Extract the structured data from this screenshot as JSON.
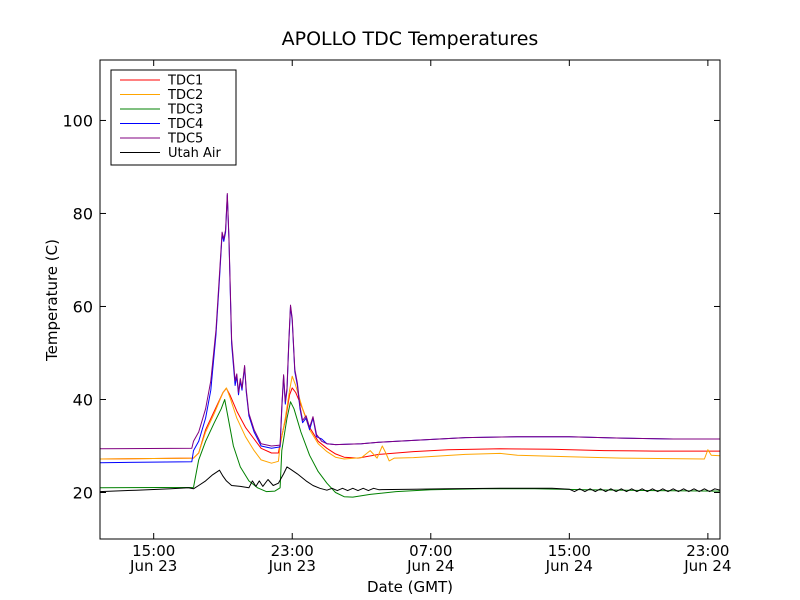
{
  "chart_data": {
    "type": "line",
    "title": "APOLLO TDC Temperatures",
    "xlabel": "Date (GMT)",
    "ylabel": "Temperature (C)",
    "x_unit": "hours",
    "xlim": [
      11.9,
      47.7
    ],
    "ylim": [
      10,
      113
    ],
    "grid": false,
    "legend_position": "top-left",
    "x_ticks": [
      {
        "value": 15,
        "time": "15:00",
        "date": "Jun 23"
      },
      {
        "value": 23,
        "time": "23:00",
        "date": "Jun 23"
      },
      {
        "value": 31,
        "time": "07:00",
        "date": "Jun 24"
      },
      {
        "value": 39,
        "time": "15:00",
        "date": "Jun 24"
      },
      {
        "value": 47,
        "time": "23:00",
        "date": "Jun 24"
      }
    ],
    "y_ticks": [
      20,
      40,
      60,
      80,
      100
    ],
    "series": [
      {
        "name": "TDC1",
        "color": "#ff0000",
        "points": [
          [
            11.9,
            27.2
          ],
          [
            17.3,
            27.4
          ],
          [
            17.6,
            28.5
          ],
          [
            18.0,
            33.5
          ],
          [
            18.5,
            37.5
          ],
          [
            19.0,
            41.5
          ],
          [
            19.2,
            42.4
          ],
          [
            19.4,
            41.0
          ],
          [
            19.8,
            37.5
          ],
          [
            20.3,
            34.0
          ],
          [
            20.8,
            31.5
          ],
          [
            21.2,
            29.5
          ],
          [
            21.8,
            28.5
          ],
          [
            22.2,
            28.5
          ],
          [
            22.3,
            30.5
          ],
          [
            22.6,
            35.5
          ],
          [
            22.85,
            41.0
          ],
          [
            23.0,
            42.5
          ],
          [
            23.2,
            41.5
          ],
          [
            23.6,
            38.0
          ],
          [
            24.0,
            34.0
          ],
          [
            24.5,
            31.0
          ],
          [
            25.0,
            29.5
          ],
          [
            25.5,
            28.3
          ],
          [
            26.0,
            27.6
          ],
          [
            26.8,
            27.4
          ],
          [
            28.0,
            28.2
          ],
          [
            30.0,
            28.8
          ],
          [
            32.0,
            29.2
          ],
          [
            35.0,
            29.4
          ],
          [
            38.0,
            29.3
          ],
          [
            41.0,
            29.0
          ],
          [
            44.0,
            28.9
          ],
          [
            47.7,
            28.9
          ]
        ]
      },
      {
        "name": "TDC2",
        "color": "#ffa500",
        "points": [
          [
            11.9,
            27.2
          ],
          [
            17.3,
            27.4
          ],
          [
            17.6,
            28.5
          ],
          [
            18.0,
            33.0
          ],
          [
            18.5,
            37.0
          ],
          [
            19.0,
            41.5
          ],
          [
            19.2,
            42.5
          ],
          [
            19.4,
            40.5
          ],
          [
            19.8,
            36.0
          ],
          [
            20.3,
            32.0
          ],
          [
            20.8,
            29.0
          ],
          [
            21.2,
            27.0
          ],
          [
            21.8,
            26.3
          ],
          [
            22.2,
            26.7
          ],
          [
            22.3,
            30.0
          ],
          [
            22.6,
            36.0
          ],
          [
            22.85,
            42.0
          ],
          [
            23.0,
            45.0
          ],
          [
            23.2,
            43.0
          ],
          [
            23.6,
            38.0
          ],
          [
            24.0,
            33.5
          ],
          [
            24.5,
            30.5
          ],
          [
            25.0,
            28.8
          ],
          [
            25.5,
            27.6
          ],
          [
            26.0,
            27.2
          ],
          [
            27.0,
            27.5
          ],
          [
            27.5,
            29.0
          ],
          [
            27.9,
            27.4
          ],
          [
            28.2,
            30.0
          ],
          [
            28.4,
            28.5
          ],
          [
            28.6,
            26.8
          ],
          [
            28.9,
            27.4
          ],
          [
            30.0,
            27.5
          ],
          [
            33.0,
            28.2
          ],
          [
            35.0,
            28.4
          ],
          [
            36.0,
            28.0
          ],
          [
            39.0,
            27.7
          ],
          [
            42.0,
            27.4
          ],
          [
            46.8,
            27.2
          ],
          [
            47.0,
            29.2
          ],
          [
            47.2,
            28.0
          ],
          [
            47.7,
            27.9
          ]
        ]
      },
      {
        "name": "TDC3",
        "color": "#008000",
        "points": [
          [
            11.9,
            21.0
          ],
          [
            17.3,
            21.1
          ],
          [
            17.6,
            27.0
          ],
          [
            18.0,
            31.0
          ],
          [
            18.5,
            35.0
          ],
          [
            18.9,
            38.0
          ],
          [
            19.1,
            40.0
          ],
          [
            19.3,
            36.0
          ],
          [
            19.6,
            30.0
          ],
          [
            20.0,
            25.5
          ],
          [
            20.5,
            22.5
          ],
          [
            21.0,
            21.0
          ],
          [
            21.5,
            20.2
          ],
          [
            22.0,
            20.3
          ],
          [
            22.3,
            21.0
          ],
          [
            22.4,
            29.0
          ],
          [
            22.7,
            36.0
          ],
          [
            22.9,
            39.5
          ],
          [
            23.1,
            38.0
          ],
          [
            23.5,
            33.0
          ],
          [
            24.0,
            28.0
          ],
          [
            24.5,
            24.5
          ],
          [
            25.0,
            22.0
          ],
          [
            25.5,
            20.0
          ],
          [
            26.0,
            19.1
          ],
          [
            26.5,
            19.0
          ],
          [
            27.5,
            19.6
          ],
          [
            29.0,
            20.2
          ],
          [
            31.0,
            20.6
          ],
          [
            34.0,
            20.8
          ],
          [
            37.0,
            20.8
          ],
          [
            40.0,
            20.6
          ],
          [
            44.0,
            20.4
          ],
          [
            47.7,
            20.3
          ]
        ]
      },
      {
        "name": "TDC4",
        "color": "#0000ff",
        "points": [
          [
            11.9,
            26.4
          ],
          [
            17.2,
            26.6
          ],
          [
            17.3,
            29.0
          ],
          [
            17.6,
            31.0
          ],
          [
            18.0,
            36.0
          ],
          [
            18.3,
            42.0
          ],
          [
            18.6,
            54.0
          ],
          [
            18.8,
            66.0
          ],
          [
            18.95,
            75.5
          ],
          [
            19.05,
            74.0
          ],
          [
            19.15,
            76.0
          ],
          [
            19.25,
            84.0
          ],
          [
            19.35,
            74.0
          ],
          [
            19.5,
            52.0
          ],
          [
            19.7,
            43.0
          ],
          [
            19.8,
            45.0
          ],
          [
            19.9,
            41.0
          ],
          [
            20.0,
            44.0
          ],
          [
            20.1,
            42.0
          ],
          [
            20.25,
            47.0
          ],
          [
            20.35,
            41.5
          ],
          [
            20.5,
            36.5
          ],
          [
            20.8,
            33.0
          ],
          [
            21.2,
            30.0
          ],
          [
            21.8,
            29.5
          ],
          [
            22.3,
            29.8
          ],
          [
            22.4,
            38.0
          ],
          [
            22.5,
            45.0
          ],
          [
            22.6,
            39.0
          ],
          [
            22.7,
            42.0
          ],
          [
            22.8,
            52.0
          ],
          [
            22.9,
            60.0
          ],
          [
            23.0,
            57.0
          ],
          [
            23.15,
            46.0
          ],
          [
            23.3,
            43.0
          ],
          [
            23.45,
            38.0
          ],
          [
            23.6,
            35.0
          ],
          [
            23.8,
            36.0
          ],
          [
            24.0,
            33.5
          ],
          [
            24.2,
            36.0
          ],
          [
            24.4,
            32.0
          ],
          [
            24.7,
            31.5
          ],
          [
            25.0,
            30.5
          ],
          [
            25.5,
            30.3
          ],
          [
            27.0,
            30.5
          ],
          [
            28.0,
            30.8
          ],
          [
            30.0,
            31.2
          ],
          [
            33.0,
            31.8
          ],
          [
            36.0,
            32.0
          ],
          [
            39.0,
            32.0
          ],
          [
            42.0,
            31.7
          ],
          [
            45.0,
            31.5
          ],
          [
            47.7,
            31.5
          ]
        ]
      },
      {
        "name": "TDC5",
        "color": "#800080",
        "points": [
          [
            11.9,
            29.4
          ],
          [
            17.2,
            29.5
          ],
          [
            17.3,
            31.0
          ],
          [
            17.6,
            33.0
          ],
          [
            18.0,
            38.0
          ],
          [
            18.3,
            44.0
          ],
          [
            18.6,
            55.0
          ],
          [
            18.8,
            67.0
          ],
          [
            18.95,
            76.0
          ],
          [
            19.05,
            74.5
          ],
          [
            19.15,
            76.5
          ],
          [
            19.25,
            84.3
          ],
          [
            19.35,
            74.5
          ],
          [
            19.5,
            53.0
          ],
          [
            19.7,
            44.0
          ],
          [
            19.8,
            45.5
          ],
          [
            19.9,
            41.5
          ],
          [
            20.0,
            44.5
          ],
          [
            20.1,
            42.5
          ],
          [
            20.25,
            47.3
          ],
          [
            20.35,
            42.0
          ],
          [
            20.5,
            37.0
          ],
          [
            20.8,
            33.5
          ],
          [
            21.2,
            30.5
          ],
          [
            21.8,
            30.0
          ],
          [
            22.3,
            30.2
          ],
          [
            22.4,
            38.5
          ],
          [
            22.5,
            45.3
          ],
          [
            22.6,
            39.5
          ],
          [
            22.7,
            42.5
          ],
          [
            22.8,
            52.5
          ],
          [
            22.9,
            60.3
          ],
          [
            23.0,
            57.5
          ],
          [
            23.15,
            46.5
          ],
          [
            23.3,
            43.5
          ],
          [
            23.45,
            38.5
          ],
          [
            23.6,
            35.5
          ],
          [
            23.8,
            36.5
          ],
          [
            24.0,
            34.0
          ],
          [
            24.2,
            36.3
          ],
          [
            24.4,
            32.5
          ],
          [
            24.7,
            31.0
          ],
          [
            25.0,
            30.5
          ],
          [
            25.5,
            30.3
          ],
          [
            27.0,
            30.5
          ],
          [
            28.0,
            30.8
          ],
          [
            30.0,
            31.2
          ],
          [
            33.0,
            31.8
          ],
          [
            36.0,
            32.0
          ],
          [
            39.0,
            32.0
          ],
          [
            42.0,
            31.7
          ],
          [
            45.0,
            31.5
          ],
          [
            47.7,
            31.5
          ]
        ]
      },
      {
        "name": "Utah Air",
        "color": "#000000",
        "points": [
          [
            11.9,
            20.2
          ],
          [
            14.0,
            20.5
          ],
          [
            16.0,
            20.8
          ],
          [
            17.0,
            21.0
          ],
          [
            17.3,
            20.8
          ],
          [
            17.6,
            21.5
          ],
          [
            18.0,
            22.5
          ],
          [
            18.4,
            23.8
          ],
          [
            18.8,
            24.8
          ],
          [
            19.0,
            23.5
          ],
          [
            19.2,
            22.5
          ],
          [
            19.5,
            21.5
          ],
          [
            20.0,
            21.3
          ],
          [
            20.5,
            21.0
          ],
          [
            20.7,
            22.5
          ],
          [
            20.9,
            21.3
          ],
          [
            21.1,
            22.5
          ],
          [
            21.3,
            21.3
          ],
          [
            21.6,
            22.8
          ],
          [
            21.9,
            21.5
          ],
          [
            22.2,
            22.0
          ],
          [
            22.5,
            24.0
          ],
          [
            22.7,
            25.5
          ],
          [
            22.9,
            25.0
          ],
          [
            23.3,
            24.0
          ],
          [
            23.8,
            22.5
          ],
          [
            24.2,
            21.5
          ],
          [
            24.6,
            20.9
          ],
          [
            25.0,
            20.5
          ],
          [
            25.3,
            20.9
          ],
          [
            25.6,
            20.4
          ],
          [
            25.9,
            20.9
          ],
          [
            26.2,
            20.4
          ],
          [
            26.5,
            20.9
          ],
          [
            26.8,
            20.4
          ],
          [
            27.1,
            20.9
          ],
          [
            27.4,
            20.4
          ],
          [
            27.7,
            20.9
          ],
          [
            28.0,
            20.6
          ],
          [
            30.0,
            20.7
          ],
          [
            32.0,
            20.8
          ],
          [
            35.0,
            20.9
          ],
          [
            38.0,
            20.9
          ],
          [
            39.0,
            20.7
          ],
          [
            39.3,
            20.2
          ],
          [
            39.6,
            20.8
          ],
          [
            39.9,
            20.2
          ],
          [
            40.2,
            20.8
          ],
          [
            40.5,
            20.2
          ],
          [
            40.8,
            20.8
          ],
          [
            41.1,
            20.2
          ],
          [
            41.4,
            20.8
          ],
          [
            41.7,
            20.2
          ],
          [
            42.0,
            20.8
          ],
          [
            42.3,
            20.2
          ],
          [
            42.6,
            20.8
          ],
          [
            42.9,
            20.2
          ],
          [
            43.2,
            20.8
          ],
          [
            43.5,
            20.2
          ],
          [
            43.8,
            20.8
          ],
          [
            44.1,
            20.2
          ],
          [
            44.4,
            20.8
          ],
          [
            44.7,
            20.2
          ],
          [
            45.0,
            20.8
          ],
          [
            45.3,
            20.2
          ],
          [
            45.6,
            20.8
          ],
          [
            45.9,
            20.2
          ],
          [
            46.2,
            20.8
          ],
          [
            46.5,
            20.2
          ],
          [
            46.8,
            20.8
          ],
          [
            47.1,
            20.2
          ],
          [
            47.4,
            20.8
          ],
          [
            47.7,
            20.5
          ]
        ]
      }
    ]
  }
}
